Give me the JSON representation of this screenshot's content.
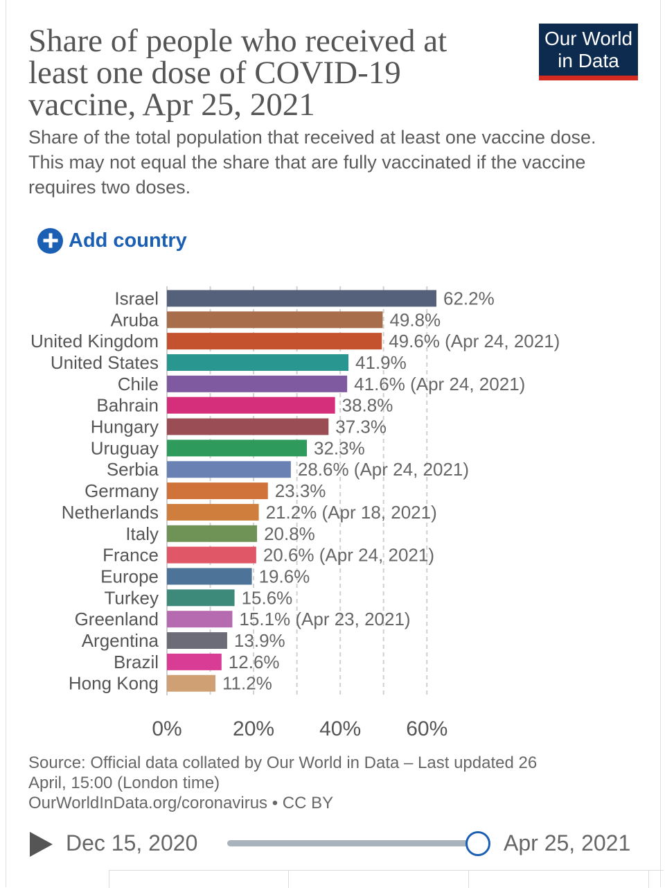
{
  "header": {
    "title": "Share of people who received at least one dose of COVID-19 vaccine, Apr 25, 2021",
    "subtitle": "Share of the total population that received at least one vaccine dose. This may not equal the share that are fully vaccinated if the vaccine requires two doses.",
    "logo_line1": "Our World",
    "logo_line2": "in Data",
    "logo_colors": {
      "background": "#0d2a4f",
      "stripe": "#d42b21"
    }
  },
  "controls": {
    "add_country_label": "Add country",
    "add_country_icon": "plus-circle-icon",
    "accent_color": "#1a5fb4"
  },
  "chart_data": {
    "type": "bar",
    "orientation": "horizontal",
    "categories": [
      "Israel",
      "Aruba",
      "United Kingdom",
      "United States",
      "Chile",
      "Bahrain",
      "Hungary",
      "Uruguay",
      "Serbia",
      "Germany",
      "Netherlands",
      "Italy",
      "France",
      "Europe",
      "Turkey",
      "Greenland",
      "Argentina",
      "Brazil",
      "Hong Kong"
    ],
    "values": [
      62.2,
      49.8,
      49.6,
      41.9,
      41.6,
      38.8,
      37.3,
      32.3,
      28.6,
      23.3,
      21.2,
      20.8,
      20.6,
      19.6,
      15.6,
      15.1,
      13.9,
      12.6,
      11.2
    ],
    "value_labels": [
      "62.2%",
      "49.8%",
      "49.6% (Apr 24, 2021)",
      "41.9%",
      "41.6% (Apr 24, 2021)",
      "38.8%",
      "37.3%",
      "32.3%",
      "28.6% (Apr 24, 2021)",
      "23.3%",
      "21.2% (Apr 18, 2021)",
      "20.8%",
      "20.6% (Apr 24, 2021)",
      "19.6%",
      "15.6%",
      "15.1% (Apr 23, 2021)",
      "13.9%",
      "12.6%",
      "11.2%"
    ],
    "colors": [
      "#55607a",
      "#a86e4b",
      "#c4522e",
      "#29968f",
      "#805aa0",
      "#d52f7c",
      "#9a4d55",
      "#2e9a5b",
      "#6a82b3",
      "#d0733a",
      "#cf7e3d",
      "#6f9356",
      "#e05768",
      "#4e7399",
      "#3d8a7a",
      "#b66bb1",
      "#6b6c78",
      "#d93c94",
      "#cea074"
    ],
    "xlim": [
      0,
      62.2
    ],
    "xticks": [
      0,
      20,
      40,
      60
    ],
    "xtick_labels": [
      "0%",
      "20%",
      "40%",
      "60%"
    ],
    "grid": "vertical-dashed",
    "legend": "none"
  },
  "footer": {
    "source_line1": "Source: Official data collated by Our World in Data – Last updated 26",
    "source_line2": "April, 15:00 (London time)",
    "source_line3": "OurWorldInData.org/coronavirus • CC BY"
  },
  "timeline": {
    "play_icon": "play-icon",
    "start_label": "Dec 15, 2020",
    "end_label": "Apr 25, 2021",
    "position": 1.0
  }
}
